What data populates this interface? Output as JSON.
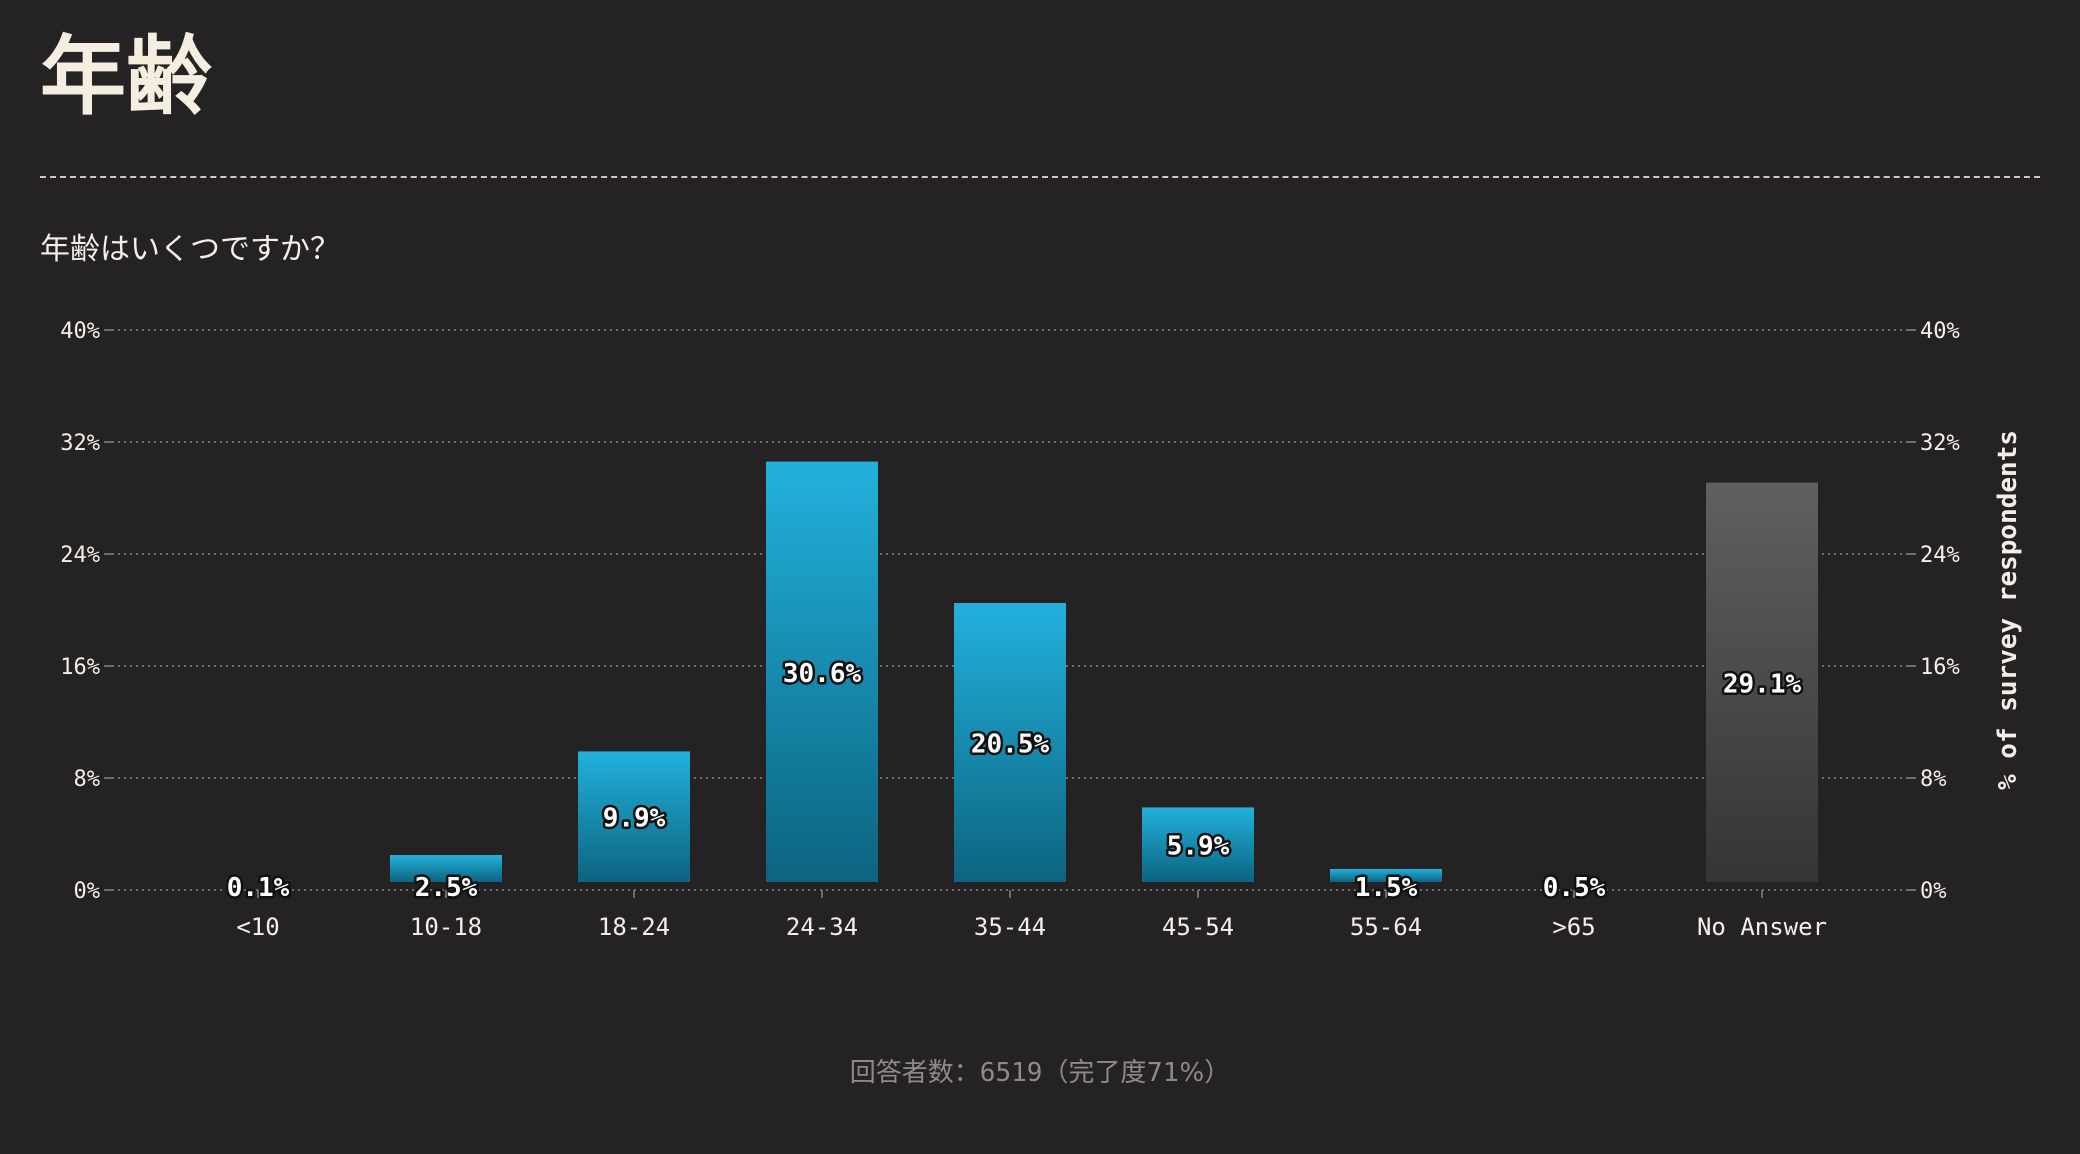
{
  "page": {
    "title": "年齢",
    "question": "年齢はいくつですか？",
    "footer_label": "回答者数：",
    "footer_count": "6519",
    "footer_suffix": "（完了度71%）"
  },
  "colors": {
    "background": "#252224",
    "bar_top": "#22b1dc",
    "bar_bottom": "#0c6480",
    "noanswer_top": "#606060",
    "noanswer_bottom": "#363436",
    "grid": "#8a8580",
    "text": "#f3efe6"
  },
  "chart_data": {
    "type": "bar",
    "categories": [
      "<10",
      "10-18",
      "18-24",
      "24-34",
      "35-44",
      "45-54",
      "55-64",
      ">65",
      "No Answer"
    ],
    "values": [
      0.1,
      2.5,
      9.9,
      30.6,
      20.5,
      5.9,
      1.5,
      0.5,
      29.1
    ],
    "data_labels": [
      "0.1%",
      "2.5%",
      "9.9%",
      "30.6%",
      "20.5%",
      "5.9%",
      "1.5%",
      "0.5%",
      "29.1%"
    ],
    "highlight_category": "No Answer",
    "ylim": [
      0,
      40
    ],
    "yticks": [
      0,
      8,
      16,
      24,
      32,
      40
    ],
    "ytick_labels": [
      "0%",
      "8%",
      "16%",
      "24%",
      "32%",
      "40%"
    ],
    "ylabel_right": "% of survey respondents",
    "grid": true,
    "secondary_axis": "right"
  }
}
